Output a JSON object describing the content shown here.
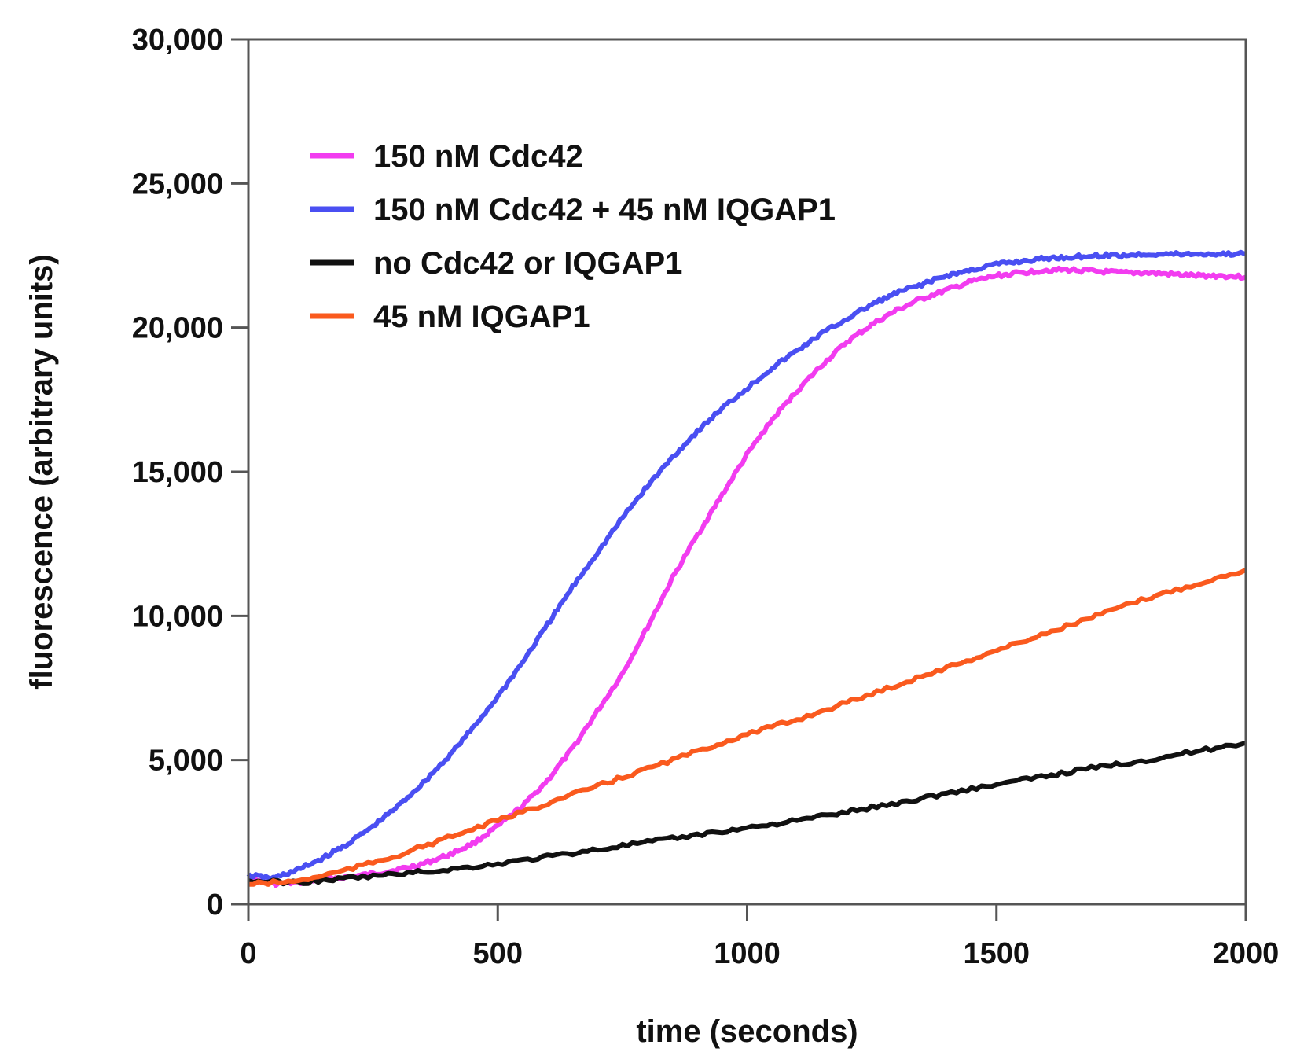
{
  "chart_data": {
    "type": "line",
    "title": "",
    "xlabel": "time (seconds)",
    "ylabel": "fluorescence (arbitrary units)",
    "xlim": [
      0,
      2000
    ],
    "ylim": [
      0,
      30000
    ],
    "x_ticks": [
      0,
      500,
      1000,
      1500,
      2000
    ],
    "x_tick_labels": [
      "0",
      "500",
      "1000",
      "1500",
      "2000"
    ],
    "y_ticks": [
      0,
      5000,
      10000,
      15000,
      20000,
      25000,
      30000
    ],
    "y_tick_labels": [
      "0",
      "5,000",
      "10,000",
      "15,000",
      "20,000",
      "25,000",
      "30,000"
    ],
    "grid": false,
    "legend_position": "top-left",
    "series": [
      {
        "name": "150 nM Cdc42",
        "color": "#f23cf0",
        "x": [
          0,
          50,
          100,
          150,
          200,
          250,
          300,
          350,
          400,
          450,
          500,
          550,
          600,
          650,
          700,
          750,
          800,
          850,
          900,
          950,
          1000,
          1050,
          1100,
          1150,
          1200,
          1250,
          1300,
          1350,
          1400,
          1450,
          1500,
          1550,
          1600,
          1650,
          1700,
          1750,
          1800,
          1850,
          1900,
          1950,
          2000
        ],
        "y": [
          900,
          700,
          750,
          850,
          950,
          1050,
          1200,
          1400,
          1700,
          2100,
          2700,
          3400,
          4300,
          5400,
          6700,
          8000,
          9600,
          11300,
          12800,
          14200,
          15600,
          16800,
          17800,
          18700,
          19500,
          20100,
          20600,
          21000,
          21300,
          21600,
          21800,
          21900,
          22000,
          22000,
          21950,
          21900,
          21900,
          21850,
          21800,
          21800,
          21750
        ]
      },
      {
        "name": "150 nM Cdc42 + 45 nM IQGAP1",
        "color": "#4a4ff2",
        "x": [
          0,
          50,
          100,
          150,
          200,
          250,
          300,
          350,
          400,
          450,
          500,
          550,
          600,
          650,
          700,
          750,
          800,
          850,
          900,
          950,
          1000,
          1050,
          1100,
          1150,
          1200,
          1250,
          1300,
          1350,
          1400,
          1450,
          1500,
          1550,
          1600,
          1650,
          1700,
          1750,
          1800,
          1850,
          1900,
          1950,
          2000
        ],
        "y": [
          1000,
          900,
          1200,
          1600,
          2100,
          2700,
          3400,
          4200,
          5100,
          6100,
          7200,
          8400,
          9700,
          11000,
          12200,
          13400,
          14500,
          15500,
          16400,
          17200,
          17900,
          18600,
          19200,
          19800,
          20300,
          20800,
          21200,
          21500,
          21800,
          22000,
          22200,
          22300,
          22400,
          22450,
          22500,
          22500,
          22550,
          22550,
          22550,
          22550,
          22550
        ]
      },
      {
        "name": "no Cdc42 or IQGAP1",
        "color": "#111111",
        "x": [
          0,
          100,
          200,
          300,
          400,
          500,
          600,
          700,
          800,
          900,
          1000,
          1100,
          1200,
          1300,
          1400,
          1500,
          1600,
          1700,
          1800,
          1900,
          2000
        ],
        "y": [
          800,
          750,
          900,
          1050,
          1200,
          1400,
          1650,
          1900,
          2150,
          2400,
          2650,
          2900,
          3200,
          3500,
          3850,
          4150,
          4450,
          4750,
          5000,
          5300,
          5600
        ]
      },
      {
        "name": "45 nM IQGAP1",
        "color": "#fa5a1e",
        "x": [
          0,
          100,
          200,
          300,
          400,
          500,
          600,
          700,
          800,
          900,
          1000,
          1100,
          1200,
          1300,
          1400,
          1500,
          1600,
          1700,
          1800,
          1900,
          2000
        ],
        "y": [
          700,
          800,
          1200,
          1700,
          2300,
          2900,
          3500,
          4100,
          4700,
          5300,
          5900,
          6400,
          7000,
          7600,
          8200,
          8800,
          9400,
          10000,
          10600,
          11100,
          11600
        ]
      }
    ]
  }
}
